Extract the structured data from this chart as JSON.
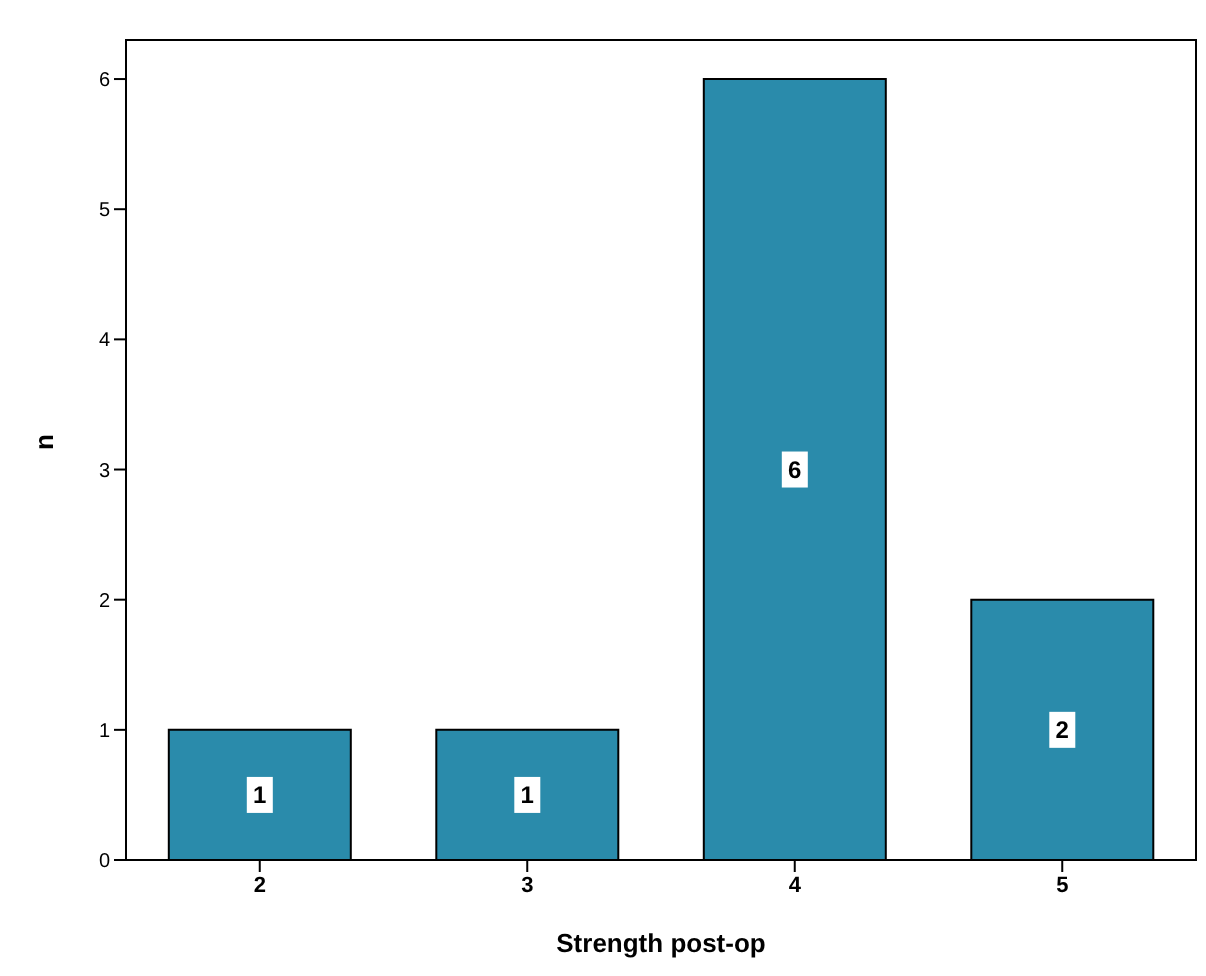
{
  "chart_data": {
    "type": "bar",
    "xlabel": "Strength post-op",
    "ylabel": "n",
    "categories": [
      "2",
      "3",
      "4",
      "5"
    ],
    "values": [
      1,
      1,
      6,
      2
    ],
    "color": "#2a8bab",
    "ylim": [
      0,
      6.3
    ],
    "yticks": [
      0,
      1,
      2,
      3,
      4,
      5,
      6
    ],
    "grid": false,
    "data_labels": true
  }
}
